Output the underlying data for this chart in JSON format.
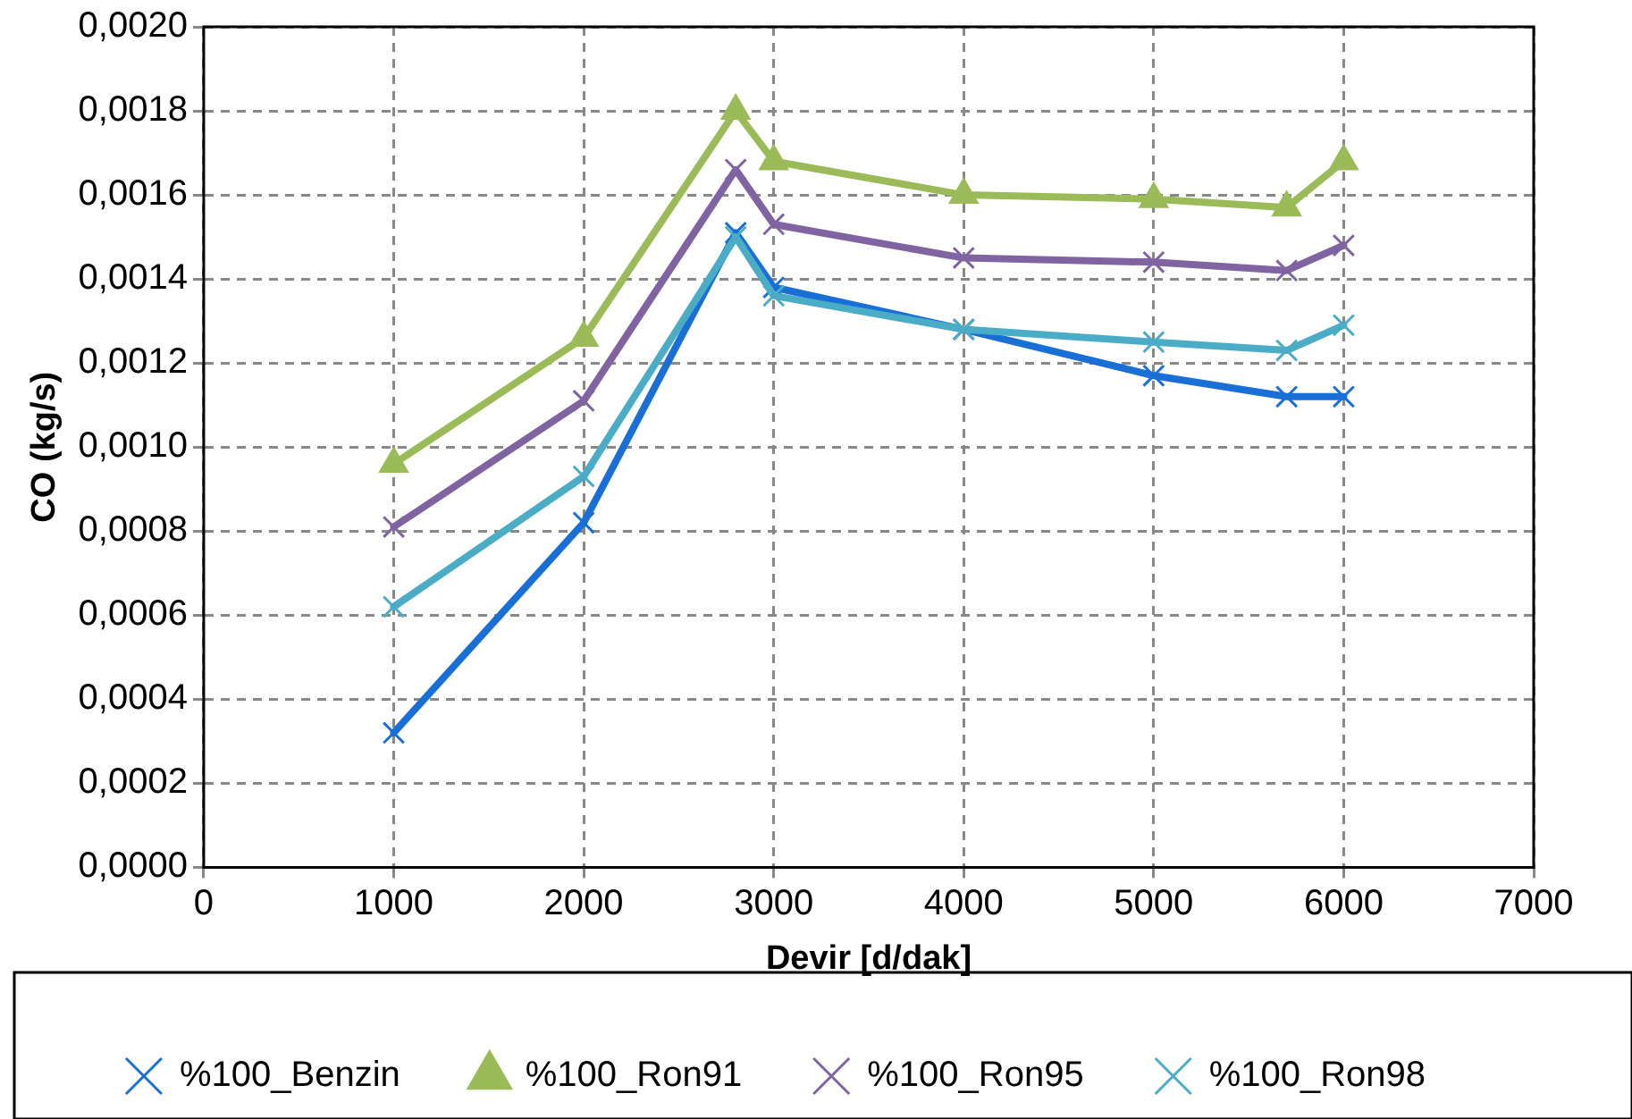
{
  "chart_data": {
    "type": "line",
    "xlabel": "Devir [d/dak]",
    "ylabel": "CO (kg/s)",
    "x": [
      1000,
      2000,
      2800,
      3000,
      4000,
      5000,
      5700,
      6000
    ],
    "series": [
      {
        "name": "%100_Benzin",
        "color": "#1a6fd6",
        "marker": "cross",
        "values": [
          0.00032,
          0.00082,
          0.00151,
          0.00138,
          0.00128,
          0.00117,
          0.00112,
          0.00112
        ]
      },
      {
        "name": "%100_Ron91",
        "color": "#9bbb59",
        "marker": "triangle",
        "values": [
          0.00096,
          0.00126,
          0.0018,
          0.00168,
          0.0016,
          0.00159,
          0.00157,
          0.00168
        ]
      },
      {
        "name": "%100_Ron95",
        "color": "#8064a2",
        "marker": "cross",
        "values": [
          0.00081,
          0.00111,
          0.00166,
          0.00153,
          0.00145,
          0.00144,
          0.00142,
          0.00148
        ]
      },
      {
        "name": "%100_Ron98",
        "color": "#4bacc6",
        "marker": "cross",
        "values": [
          0.00062,
          0.00093,
          0.0015,
          0.00136,
          0.00128,
          0.00125,
          0.00123,
          0.00129
        ]
      }
    ],
    "xlim": [
      0,
      7000
    ],
    "xticks": [
      0,
      1000,
      2000,
      3000,
      4000,
      5000,
      6000,
      7000
    ],
    "ylim": [
      0,
      0.002
    ],
    "yticks": [
      {
        "value": 0,
        "label": "0,0000"
      },
      {
        "value": 0.0002,
        "label": "0,0002"
      },
      {
        "value": 0.0004,
        "label": "0,0004"
      },
      {
        "value": 0.0006,
        "label": "0,0006"
      },
      {
        "value": 0.0008,
        "label": "0,0008"
      },
      {
        "value": 0.001,
        "label": "0,0010"
      },
      {
        "value": 0.0012,
        "label": "0,0012"
      },
      {
        "value": 0.0014,
        "label": "0,0014"
      },
      {
        "value": 0.0016,
        "label": "0,0016"
      },
      {
        "value": 0.0018,
        "label": "0,0018"
      },
      {
        "value": 0.002,
        "label": "0,0020"
      }
    ],
    "grid": true,
    "legend": "bottom",
    "line_style": "solid"
  }
}
